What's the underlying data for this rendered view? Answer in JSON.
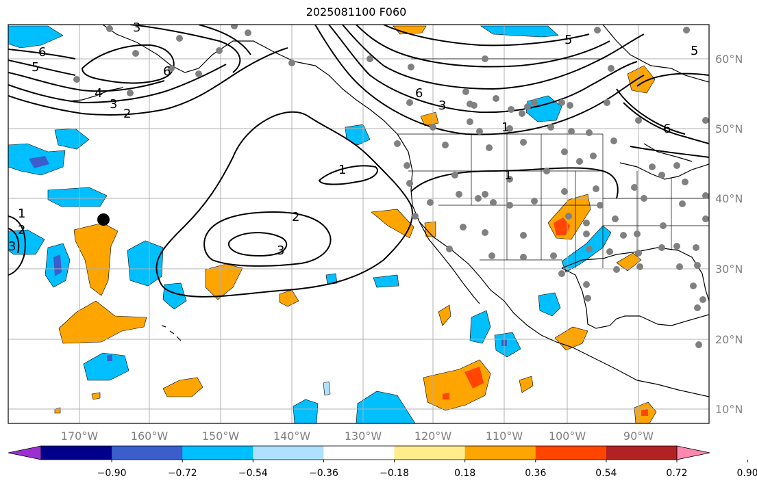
{
  "title": "2025081100 F060",
  "map": {
    "lon_ticks": [
      "170°W",
      "160°W",
      "150°W",
      "140°W",
      "130°W",
      "120°W",
      "110°W",
      "100°W",
      "90°W"
    ],
    "lat_ticks": [
      "60°N",
      "50°N",
      "40°N",
      "30°N",
      "20°N",
      "10°N"
    ],
    "contour_labels": [
      "1",
      "2",
      "3",
      "1",
      "5",
      "6",
      "4",
      "3",
      "2",
      "5",
      "6",
      "3",
      "6",
      "5",
      "6",
      "1",
      "1",
      "2",
      "3",
      "3"
    ],
    "colors": {
      "land_outline": "#000000",
      "grid": "#b0b0b0",
      "station_dot": "#808080",
      "marker": "#000000"
    }
  },
  "colorbar": {
    "labels": [
      "−0.90",
      "−0.72",
      "−0.54",
      "−0.36",
      "−0.18",
      "0.18",
      "0.36",
      "0.54",
      "0.72",
      "0.90"
    ],
    "colors": [
      "#9b30d0",
      "#00008b",
      "#3a5fcd",
      "#00bfff",
      "#afe1ff",
      "#ffffff",
      "#ffec8b",
      "#ffa500",
      "#ff4500",
      "#b22222",
      "#ff88b0"
    ]
  }
}
